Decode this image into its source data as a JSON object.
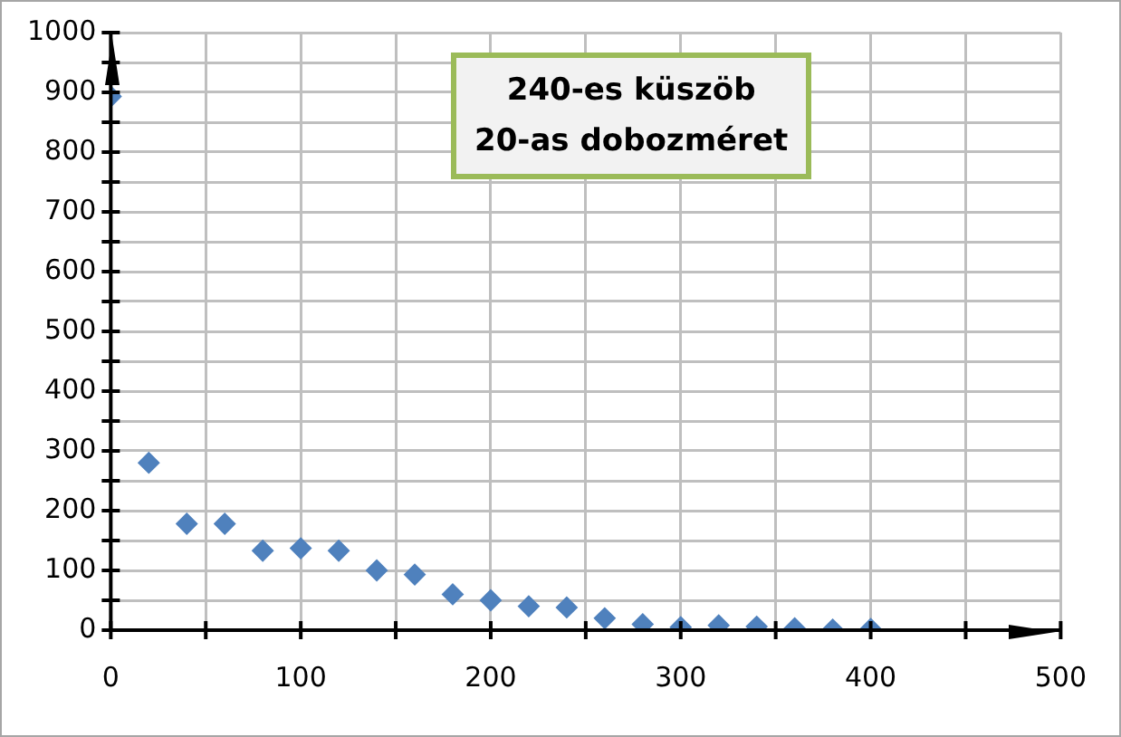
{
  "chart_data": {
    "type": "scatter",
    "marker": "diamond",
    "grid": true,
    "annotations": [
      "240-es küszöb",
      "20-as dobozméret"
    ],
    "x": [
      0,
      20,
      40,
      60,
      80,
      100,
      120,
      140,
      160,
      180,
      200,
      220,
      240,
      260,
      280,
      300,
      320,
      340,
      360,
      380,
      400
    ],
    "series": [
      {
        "color": "#4f81bd",
        "values": [
          893,
          280,
          178,
          178,
          133,
          137,
          133,
          100,
          93,
          60,
          50,
          40,
          38,
          20,
          10,
          5,
          8,
          6,
          3,
          1,
          2
        ]
      }
    ],
    "xlim": [
      0,
      500
    ],
    "ylim": [
      0,
      1000
    ],
    "xticks": [
      0,
      {
        "value": 50,
        "label": null
      },
      100,
      {
        "value": 150,
        "label": null
      },
      200,
      {
        "value": 250,
        "label": null
      },
      300,
      {
        "value": 350,
        "label": null
      },
      400,
      {
        "value": 450,
        "label": null
      },
      500
    ],
    "yticks": [
      0,
      {
        "value": 50,
        "label": null
      },
      100,
      {
        "value": 150,
        "label": null
      },
      200,
      {
        "value": 250,
        "label": null
      },
      300,
      {
        "value": 350,
        "label": null
      },
      400,
      {
        "value": 450,
        "label": null
      },
      500,
      {
        "value": 550,
        "label": null
      },
      600,
      {
        "value": 650,
        "label": null
      },
      700,
      {
        "value": 750,
        "label": null
      },
      800,
      {
        "value": 850,
        "label": null
      },
      900,
      {
        "value": 950,
        "label": null
      },
      1000
    ]
  }
}
